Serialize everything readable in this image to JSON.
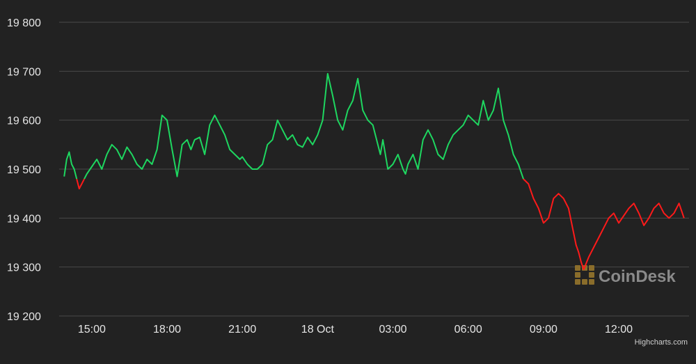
{
  "chart_data": {
    "type": "line",
    "title": "",
    "xlabel": "",
    "ylabel": "",
    "ylim": [
      19200,
      19800
    ],
    "y_ticks": [
      19200,
      19300,
      19400,
      19500,
      19600,
      19700,
      19800
    ],
    "y_tick_labels": [
      "19 200",
      "19 300",
      "19 400",
      "19 500",
      "19 600",
      "19 700",
      "19 800"
    ],
    "x_unit": "hours since 17 Oct 13:00",
    "xlim": [
      0.7,
      25.8
    ],
    "x_ticks": [
      2,
      5,
      8,
      11,
      14,
      17,
      20,
      23
    ],
    "x_tick_labels": [
      "15:00",
      "18:00",
      "21:00",
      "18 Oct",
      "03:00",
      "06:00",
      "09:00",
      "12:00"
    ],
    "grid": true,
    "threshold": 19480,
    "colors": {
      "above": "#1ed760",
      "below": "#ff1a1a",
      "background": "#222222",
      "grid": "#4a4a4a"
    },
    "series": [
      {
        "x": [
          0.9,
          1.0,
          1.1,
          1.2,
          1.3,
          1.4,
          1.5,
          1.6,
          1.8,
          2.0,
          2.2,
          2.4,
          2.6,
          2.8,
          3.0,
          3.2,
          3.4,
          3.6,
          3.8,
          4.0,
          4.2,
          4.4,
          4.6,
          4.8,
          5.0,
          5.2,
          5.4,
          5.6,
          5.8,
          5.95,
          6.1,
          6.3,
          6.5,
          6.7,
          6.9,
          7.1,
          7.3,
          7.5,
          7.7,
          7.9,
          8.0,
          8.2,
          8.4,
          8.6,
          8.8,
          9.0,
          9.2,
          9.4,
          9.6,
          9.8,
          10.0,
          10.2,
          10.4,
          10.6,
          10.8,
          11.0,
          11.2,
          11.4,
          11.6,
          11.8,
          12.0,
          12.2,
          12.4,
          12.6,
          12.8,
          13.0,
          13.2,
          13.5,
          13.6,
          13.8,
          14.0,
          14.2,
          14.4,
          14.5,
          14.6,
          14.8,
          15.0,
          15.2,
          15.4,
          15.6,
          15.8,
          16.0,
          16.2,
          16.4,
          16.6,
          16.8,
          17.0,
          17.2,
          17.4,
          17.6,
          17.8,
          18.0,
          18.2,
          18.4,
          18.6,
          18.8,
          19.0,
          19.2,
          19.4,
          19.6,
          19.8,
          20.0,
          20.2,
          20.4,
          20.6,
          20.8,
          21.0,
          21.2,
          21.3,
          21.4,
          21.5,
          21.6,
          21.8,
          22.0,
          22.2,
          22.4,
          22.6,
          22.8,
          22.9,
          23.0,
          23.2,
          23.4,
          23.6,
          23.8,
          24.0,
          24.2,
          24.4,
          24.6,
          24.8,
          25.0,
          25.2,
          25.4,
          25.6
        ],
        "y": [
          19485,
          19520,
          19535,
          19510,
          19500,
          19480,
          19460,
          19470,
          19490,
          19505,
          19520,
          19500,
          19530,
          19550,
          19540,
          19520,
          19545,
          19530,
          19510,
          19500,
          19520,
          19510,
          19540,
          19610,
          19600,
          19540,
          19485,
          19550,
          19560,
          19540,
          19560,
          19565,
          19530,
          19590,
          19610,
          19590,
          19570,
          19540,
          19530,
          19520,
          19525,
          19510,
          19500,
          19500,
          19510,
          19550,
          19560,
          19600,
          19580,
          19560,
          19570,
          19550,
          19545,
          19565,
          19550,
          19570,
          19600,
          19695,
          19650,
          19600,
          19580,
          19620,
          19640,
          19685,
          19620,
          19600,
          19590,
          19530,
          19560,
          19500,
          19510,
          19530,
          19500,
          19490,
          19510,
          19530,
          19500,
          19560,
          19580,
          19560,
          19530,
          19520,
          19550,
          19570,
          19580,
          19590,
          19610,
          19600,
          19590,
          19640,
          19600,
          19620,
          19665,
          19600,
          19570,
          19530,
          19510,
          19480,
          19470,
          19440,
          19420,
          19390,
          19400,
          19440,
          19450,
          19440,
          19420,
          19370,
          19345,
          19330,
          19310,
          19295,
          19320,
          19340,
          19360,
          19380,
          19400,
          19410,
          19400,
          19390,
          19405,
          19420,
          19430,
          19410,
          19385,
          19400,
          19420,
          19430,
          19410,
          19400,
          19410,
          19430,
          19400
        ]
      }
    ]
  },
  "watermark": {
    "text": "CoinDesk",
    "icon": "coindesk-logo-icon"
  },
  "credit": {
    "text": "Highcharts.com"
  }
}
